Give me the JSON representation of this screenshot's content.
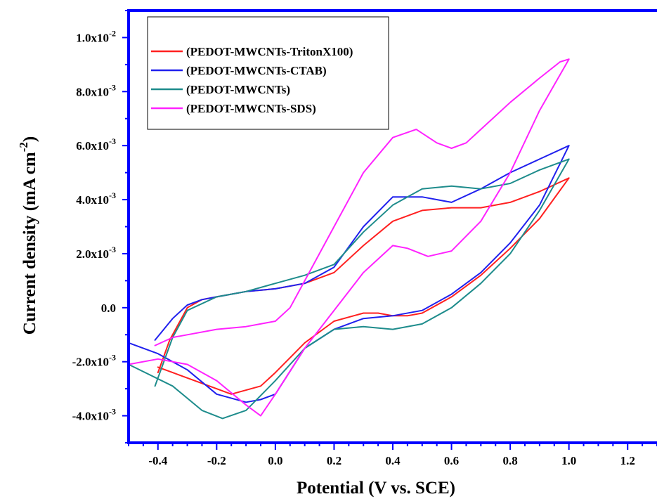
{
  "chart_data": {
    "type": "line",
    "title": "",
    "xlabel": "Potential (V vs. SCE)",
    "ylabel_main": "Current density (mA cm",
    "ylabel_sup": "-2",
    "ylabel_close": ")",
    "xlim": [
      -0.5,
      1.3
    ],
    "ylim": [
      -0.005,
      0.011
    ],
    "x_ticks": [
      {
        "v": -0.4,
        "label": "-0.4"
      },
      {
        "v": -0.2,
        "label": "-0.2"
      },
      {
        "v": 0.0,
        "label": "0.0"
      },
      {
        "v": 0.2,
        "label": "0.2"
      },
      {
        "v": 0.4,
        "label": "0.4"
      },
      {
        "v": 0.6,
        "label": "0.6"
      },
      {
        "v": 0.8,
        "label": "0.8"
      },
      {
        "v": 1.0,
        "label": "1.0"
      },
      {
        "v": 1.2,
        "label": "1.2"
      }
    ],
    "y_ticks": [
      {
        "v": -0.004,
        "mant": "-4.0x10",
        "exp": "-3"
      },
      {
        "v": -0.002,
        "mant": "-2.0x10",
        "exp": "-3"
      },
      {
        "v": 0.0,
        "mant": "0.0",
        "exp": ""
      },
      {
        "v": 0.002,
        "mant": "2.0x10",
        "exp": "-3"
      },
      {
        "v": 0.004,
        "mant": "4.0x10",
        "exp": "-3"
      },
      {
        "v": 0.006,
        "mant": "6.0x10",
        "exp": "-3"
      },
      {
        "v": 0.008,
        "mant": "8.0x10",
        "exp": "-3"
      },
      {
        "v": 0.01,
        "mant": "1.0x10",
        "exp": "-2"
      }
    ],
    "axis_color": "#0000ff",
    "legend_position": "top-left",
    "series": [
      {
        "name": "(PEDOT-MWCNTs-TritonX100)",
        "color": "#ff2020",
        "x": [
          -0.4,
          -0.36,
          -0.3,
          -0.25,
          -0.2,
          -0.1,
          0.0,
          0.1,
          0.2,
          0.3,
          0.4,
          0.5,
          0.6,
          0.7,
          0.8,
          0.9,
          1.0,
          1.0,
          0.9,
          0.8,
          0.7,
          0.6,
          0.5,
          0.45,
          0.4,
          0.35,
          0.3,
          0.2,
          0.1,
          0.0,
          -0.05,
          -0.15,
          -0.25,
          -0.35,
          -0.4
        ],
        "y": [
          -0.0024,
          -0.0012,
          0.0,
          0.0003,
          0.0004,
          0.0006,
          0.0007,
          0.0009,
          0.0013,
          0.0023,
          0.0032,
          0.0036,
          0.0037,
          0.0037,
          0.0039,
          0.0043,
          0.0048,
          0.0048,
          0.0033,
          0.0022,
          0.0012,
          0.0004,
          -0.0002,
          -0.0003,
          -0.0003,
          -0.0002,
          -0.0002,
          -0.0005,
          -0.0013,
          -0.0024,
          -0.0029,
          -0.0032,
          -0.0028,
          -0.0024,
          -0.0022
        ]
      },
      {
        "name": "(PEDOT-MWCNTs-CTAB)",
        "color": "#2020ee",
        "x": [
          -0.41,
          -0.35,
          -0.3,
          -0.25,
          -0.2,
          -0.1,
          0.0,
          0.1,
          0.2,
          0.3,
          0.4,
          0.5,
          0.6,
          0.7,
          0.8,
          0.9,
          1.0,
          1.0,
          0.9,
          0.8,
          0.7,
          0.6,
          0.5,
          0.4,
          0.3,
          0.2,
          0.1,
          0.0,
          -0.05,
          -0.1,
          -0.2,
          -0.3,
          -0.4,
          -0.5
        ],
        "y": [
          -0.0012,
          -0.0004,
          0.0001,
          0.0003,
          0.0004,
          0.0006,
          0.0007,
          0.0009,
          0.0015,
          0.003,
          0.0041,
          0.0041,
          0.0039,
          0.0044,
          0.005,
          0.0055,
          0.006,
          0.006,
          0.0038,
          0.0024,
          0.0013,
          0.0005,
          -0.0001,
          -0.0003,
          -0.0004,
          -0.0008,
          -0.0015,
          -0.0032,
          -0.0034,
          -0.0035,
          -0.0032,
          -0.0023,
          -0.0017,
          -0.0013
        ]
      },
      {
        "name": "(PEDOT-MWCNTs)",
        "color": "#1e8c8c",
        "x": [
          -0.41,
          -0.35,
          -0.3,
          -0.2,
          -0.1,
          0.0,
          0.1,
          0.2,
          0.3,
          0.4,
          0.5,
          0.6,
          0.7,
          0.8,
          0.9,
          1.0,
          1.0,
          0.9,
          0.8,
          0.7,
          0.6,
          0.5,
          0.4,
          0.3,
          0.2,
          0.1,
          0.0,
          -0.1,
          -0.18,
          -0.25,
          -0.35,
          -0.5
        ],
        "y": [
          -0.0029,
          -0.0011,
          -0.0001,
          0.0004,
          0.0006,
          0.0009,
          0.0012,
          0.0016,
          0.0028,
          0.0038,
          0.0044,
          0.0045,
          0.0044,
          0.0046,
          0.0051,
          0.0055,
          0.0055,
          0.0036,
          0.002,
          0.0009,
          0.0,
          -0.0006,
          -0.0008,
          -0.0007,
          -0.0008,
          -0.0015,
          -0.0027,
          -0.0038,
          -0.0041,
          -0.0038,
          -0.0029,
          -0.0021
        ]
      },
      {
        "name": "(PEDOT-MWCNTs-SDS)",
        "color": "#ff22ff",
        "x": [
          -0.41,
          -0.35,
          -0.3,
          -0.2,
          -0.1,
          0.0,
          0.05,
          0.1,
          0.2,
          0.3,
          0.4,
          0.48,
          0.55,
          0.6,
          0.65,
          0.7,
          0.8,
          0.9,
          0.97,
          1.0,
          1.0,
          0.9,
          0.8,
          0.7,
          0.6,
          0.52,
          0.45,
          0.4,
          0.3,
          0.2,
          0.1,
          0.0,
          -0.05,
          -0.1,
          -0.2,
          -0.3,
          -0.4,
          -0.5
        ],
        "y": [
          -0.0014,
          -0.0011,
          -0.001,
          -0.0008,
          -0.0007,
          -0.0005,
          0.0,
          0.001,
          0.003,
          0.005,
          0.0063,
          0.0066,
          0.0061,
          0.0059,
          0.0061,
          0.0066,
          0.0076,
          0.0085,
          0.0091,
          0.0092,
          0.0092,
          0.0073,
          0.005,
          0.0032,
          0.0021,
          0.0019,
          0.0022,
          0.0023,
          0.0013,
          -0.0001,
          -0.0015,
          -0.0032,
          -0.004,
          -0.0036,
          -0.0027,
          -0.0021,
          -0.0019,
          -0.0021
        ]
      }
    ]
  }
}
